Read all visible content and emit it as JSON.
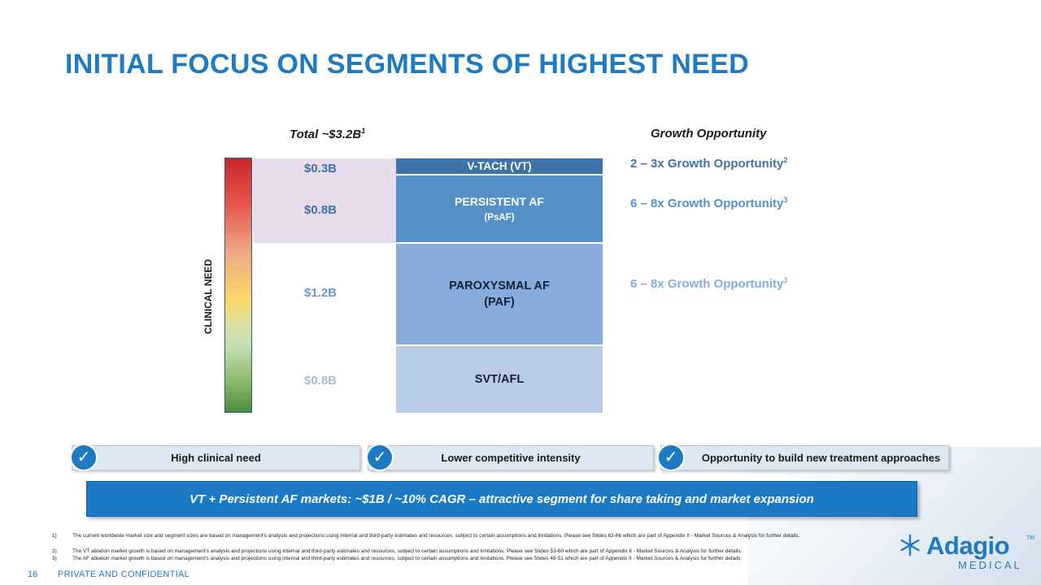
{
  "title": "INITIAL FOCUS ON SEGMENTS OF HIGHEST NEED",
  "headers": {
    "total_label": "Total ~$3.2B",
    "total_sup": "1",
    "growth_label": "Growth Opportunity"
  },
  "clinical_need_label": "CLINICAL NEED",
  "market_values": {
    "vt": "$0.3B",
    "psaf": "$0.8B",
    "paf": "$1.2B",
    "svt": "$0.8B"
  },
  "segments": {
    "vt": "V-TACH (VT)",
    "psaf_line1": "PERSISTENT AF",
    "psaf_line2": "(PsAF)",
    "paf_line1": "PAROXYSMAL AF",
    "paf_line2": "(PAF)",
    "svt": "SVT/AFL"
  },
  "growth": {
    "vt_text": "2 – 3x Growth Opportunity",
    "vt_sup": "2",
    "psaf_text": "6 – 8x Growth Opportunity",
    "psaf_sup": "3",
    "paf_text": "6 – 8x Growth Opportunity",
    "paf_sup": "3"
  },
  "checks": {
    "mark": "✓",
    "item1": "High clinical need",
    "item2": "Lower competitive intensity",
    "item3": "Opportunity to build new treatment approaches"
  },
  "banner": "VT + Persistent AF markets: ~$1B / ~10% CAGR – attractive segment for share taking and market expansion",
  "footnotes": [
    {
      "num": "1)",
      "text": "The current worldwide market size and segment sizes are based on management's analysis and projections using internal and third-party estimates and resources, subject to certain assumptions and limitations. Please see Slides 63-66 which are part of Appendix II - Market Sources & Analysis for further details."
    },
    {
      "num": "2)",
      "text": "The VT ablation market growth is based on management's analysis and projections using internal and third-party estimates and resources, subject to certain assumptions and limitations. Please see Slides 53-60 which are part of Appendix II - Market Sources & Analysis for further details."
    },
    {
      "num": "3)",
      "text": "The AF ablation market growth is based on management's analysis and projections using internal and third-party estimates and resources, subject to certain assumptions and limitations. Please see Slides 48-51 which are part of Appendix II - Market Sources & Analysis for further details."
    }
  ],
  "footer": {
    "page_number": "16",
    "confidential": "PRIVATE AND CONFIDENTIAL"
  },
  "logo": {
    "name": "Adagio",
    "tm": "TM",
    "sub": "MEDICAL"
  },
  "colors": {
    "brand_blue": "#1f7ac4",
    "vt": "#3f73a6",
    "psaf": "#5591c9",
    "paf": "#87acdb",
    "svt": "#b8cce6"
  }
}
